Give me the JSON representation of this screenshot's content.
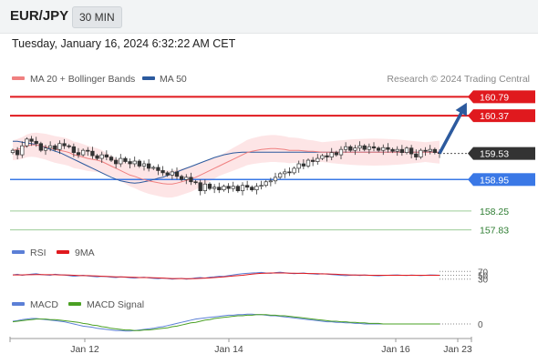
{
  "header": {
    "pair": "EUR/JPY",
    "timeframe": "30 MIN",
    "timestamp": "Tuesday, January 16, 2024 6:32:22 AM CET"
  },
  "legend": {
    "ma20": "MA 20 + Bollinger Bands",
    "ma50": "MA 50",
    "credit": "Research © 2024 Trading Central"
  },
  "colors": {
    "resistance": "#e0191e",
    "support": "#3a78e6",
    "target": "#5cab52",
    "ma20": "#f08080",
    "ma50": "#2c5a9e",
    "band": "#fde2e3",
    "candle": "#333333",
    "arrow": "#2c5a9e",
    "rsi": "#5b7fd6",
    "rsi_ma": "#e0191e",
    "macd": "#5b7fd6",
    "macd_signal": "#4aa023",
    "last_price": "#333333"
  },
  "chart_data": [
    {
      "type": "candlestick",
      "title": "EUR/JPY",
      "ylim": [
        157.6,
        161.0
      ],
      "last_price": 159.53,
      "levels": [
        {
          "value": 160.79,
          "label": "160.79",
          "kind": "resistance"
        },
        {
          "value": 160.37,
          "label": "160.37",
          "kind": "resistance"
        },
        {
          "value": 159.53,
          "label": "159.53",
          "kind": "last"
        },
        {
          "value": 158.95,
          "label": "158.95",
          "kind": "support"
        },
        {
          "value": 158.25,
          "label": "158.25",
          "kind": "target"
        },
        {
          "value": 157.83,
          "label": "157.83",
          "kind": "target"
        }
      ],
      "x_ticks": [
        "Jan 12",
        "Jan 14",
        "Jan 16",
        "Jan 23"
      ],
      "close": [
        159.6,
        159.5,
        159.7,
        159.85,
        159.8,
        159.75,
        159.6,
        159.65,
        159.7,
        159.62,
        159.75,
        159.7,
        159.68,
        159.55,
        159.5,
        159.6,
        159.58,
        159.48,
        159.42,
        159.5,
        159.45,
        159.38,
        159.3,
        159.42,
        159.35,
        159.3,
        159.36,
        159.25,
        159.3,
        159.2,
        159.22,
        159.15,
        159.1,
        159.05,
        159.12,
        159.02,
        158.95,
        159.0,
        158.9,
        158.88,
        158.7,
        158.85,
        158.75,
        158.78,
        158.72,
        158.8,
        158.75,
        158.8,
        158.7,
        158.82,
        158.78,
        158.72,
        158.8,
        158.82,
        158.9,
        158.92,
        159.0,
        159.08,
        159.12,
        159.1,
        159.2,
        159.3,
        159.25,
        159.38,
        159.35,
        159.42,
        159.48,
        159.45,
        159.55,
        159.5,
        159.62,
        159.68,
        159.6,
        159.65,
        159.7,
        159.62,
        159.68,
        159.65,
        159.6,
        159.66,
        159.62,
        159.58,
        159.62,
        159.55,
        159.65,
        159.52,
        159.45,
        159.6,
        159.58,
        159.62,
        159.55,
        159.53
      ],
      "ma20": [
        159.6,
        159.62,
        159.65,
        159.7,
        159.72,
        159.72,
        159.7,
        159.68,
        159.65,
        159.62,
        159.6,
        159.58,
        159.55,
        159.5,
        159.48,
        159.45,
        159.42,
        159.4,
        159.38,
        159.35,
        159.3,
        159.25,
        159.2,
        159.15,
        159.1,
        159.05,
        159.02,
        158.98,
        158.95,
        158.92,
        158.9,
        158.88,
        158.86,
        158.85,
        158.85,
        158.87,
        158.9,
        158.93,
        158.96,
        159.0,
        159.05,
        159.1,
        159.15,
        159.2,
        159.25,
        159.3,
        159.35,
        159.4,
        159.45,
        159.5,
        159.55,
        159.58,
        159.6,
        159.62,
        159.63,
        159.64,
        159.64,
        159.63,
        159.62,
        159.6,
        159.6,
        159.6,
        159.59,
        159.58,
        159.58,
        159.57,
        159.56,
        159.56,
        159.56,
        159.56,
        159.56,
        159.56,
        159.56,
        159.56,
        159.56,
        159.56,
        159.56,
        159.56,
        159.56,
        159.56,
        159.56,
        159.56,
        159.56,
        159.56,
        159.56,
        159.56,
        159.56,
        159.56,
        159.56,
        159.56,
        159.56,
        159.56
      ],
      "ma50": [
        159.8,
        159.8,
        159.78,
        159.76,
        159.75,
        159.72,
        159.7,
        159.66,
        159.62,
        159.58,
        159.55,
        159.5,
        159.45,
        159.4,
        159.35,
        159.3,
        159.25,
        159.2,
        159.15,
        159.1,
        159.05,
        159.0,
        158.96,
        158.92,
        158.9,
        158.88,
        158.87,
        158.88,
        158.9,
        158.92,
        158.95,
        158.98,
        159.0,
        159.04,
        159.08,
        159.12,
        159.16,
        159.2,
        159.24,
        159.28,
        159.32,
        159.36,
        159.4,
        159.44,
        159.47,
        159.5,
        159.52,
        159.54,
        159.55,
        159.56,
        159.56,
        159.56,
        159.56,
        159.56,
        159.56,
        159.56,
        159.56,
        159.56,
        159.56,
        159.56,
        159.56,
        159.56,
        159.56,
        159.56,
        159.56,
        159.56,
        159.56,
        159.56,
        159.56,
        159.56,
        159.56,
        159.56,
        159.56,
        159.56,
        159.56,
        159.56,
        159.56,
        159.56,
        159.56,
        159.56,
        159.56,
        159.56,
        159.56,
        159.56,
        159.56,
        159.56,
        159.56,
        159.56,
        159.56,
        159.56,
        159.56,
        159.56
      ]
    },
    {
      "type": "line",
      "title": "RSI",
      "ylim": [
        0,
        100
      ],
      "ticks": [
        70,
        50,
        30
      ],
      "series": [
        {
          "name": "RSI",
          "values": [
            52,
            55,
            50,
            53,
            56,
            58,
            54,
            52,
            50,
            55,
            53,
            51,
            48,
            45,
            47,
            50,
            46,
            44,
            42,
            45,
            43,
            40,
            38,
            42,
            40,
            37,
            35,
            38,
            40,
            36,
            34,
            32,
            35,
            33,
            30,
            32,
            34,
            30,
            32,
            36,
            38,
            35,
            40,
            42,
            45,
            44,
            48,
            52,
            55,
            58,
            60,
            62,
            63,
            65,
            62,
            60,
            64,
            66,
            63,
            61,
            58,
            60,
            62,
            59,
            57,
            55,
            58,
            56,
            54,
            52,
            50,
            48,
            50,
            52,
            49,
            51,
            50,
            48,
            47,
            49,
            50,
            51,
            52,
            50,
            49,
            51,
            50,
            48,
            50,
            52,
            51,
            50
          ]
        },
        {
          "name": "9MA",
          "values": [
            52,
            52,
            52,
            53,
            53,
            54,
            54,
            53,
            53,
            53,
            52,
            52,
            51,
            50,
            49,
            48,
            48,
            47,
            46,
            45,
            44,
            43,
            42,
            42,
            41,
            40,
            39,
            38,
            38,
            38,
            37,
            36,
            35,
            34,
            33,
            33,
            33,
            32,
            32,
            33,
            34,
            35,
            36,
            38,
            40,
            42,
            44,
            46,
            48,
            50,
            53,
            56,
            58,
            60,
            61,
            62,
            62,
            62,
            62,
            61,
            61,
            60,
            60,
            59,
            59,
            58,
            57,
            57,
            56,
            55,
            54,
            53,
            52,
            51,
            51,
            51,
            50,
            50,
            50,
            50,
            50,
            50,
            50,
            50,
            50,
            50,
            50,
            50,
            50,
            50,
            50,
            50
          ]
        }
      ]
    },
    {
      "type": "line",
      "title": "MACD",
      "ticks": [
        0
      ],
      "series": [
        {
          "name": "MACD",
          "values": [
            0.05,
            0.06,
            0.08,
            0.09,
            0.1,
            0.1,
            0.09,
            0.08,
            0.07,
            0.06,
            0.05,
            0.04,
            0.02,
            0.0,
            -0.02,
            -0.04,
            -0.05,
            -0.06,
            -0.08,
            -0.09,
            -0.1,
            -0.11,
            -0.12,
            -0.12,
            -0.13,
            -0.13,
            -0.12,
            -0.11,
            -0.1,
            -0.09,
            -0.08,
            -0.06,
            -0.05,
            -0.03,
            -0.01,
            0.01,
            0.03,
            0.05,
            0.07,
            0.09,
            0.1,
            0.11,
            0.12,
            0.13,
            0.14,
            0.15,
            0.16,
            0.16,
            0.17,
            0.17,
            0.18,
            0.18,
            0.17,
            0.17,
            0.16,
            0.15,
            0.15,
            0.14,
            0.13,
            0.12,
            0.11,
            0.1,
            0.09,
            0.08,
            0.07,
            0.06,
            0.05,
            0.04,
            0.04,
            0.03,
            0.03,
            0.02,
            0.02,
            0.01,
            0.01,
            0.0,
            0.0,
            0.0,
            0.0,
            0.0,
            0.0,
            0.0,
            0.0,
            0.0,
            0.0,
            0.0,
            0.0,
            0.0,
            0.0,
            0.0,
            0.0,
            0.0
          ]
        },
        {
          "name": "MACD Signal",
          "values": [
            0.04,
            0.05,
            0.06,
            0.07,
            0.08,
            0.09,
            0.09,
            0.09,
            0.08,
            0.08,
            0.07,
            0.06,
            0.05,
            0.04,
            0.03,
            0.01,
            0.0,
            -0.02,
            -0.03,
            -0.05,
            -0.06,
            -0.08,
            -0.09,
            -0.1,
            -0.11,
            -0.11,
            -0.12,
            -0.12,
            -0.11,
            -0.11,
            -0.1,
            -0.09,
            -0.08,
            -0.07,
            -0.05,
            -0.04,
            -0.02,
            0.0,
            0.02,
            0.03,
            0.05,
            0.07,
            0.08,
            0.1,
            0.11,
            0.12,
            0.13,
            0.14,
            0.15,
            0.15,
            0.16,
            0.16,
            0.17,
            0.17,
            0.17,
            0.16,
            0.16,
            0.15,
            0.15,
            0.14,
            0.13,
            0.12,
            0.11,
            0.1,
            0.09,
            0.08,
            0.07,
            0.06,
            0.05,
            0.05,
            0.04,
            0.04,
            0.03,
            0.03,
            0.02,
            0.02,
            0.01,
            0.01,
            0.01,
            0.0,
            0.0,
            0.0,
            0.0,
            0.0,
            0.0,
            0.0,
            0.0,
            0.0,
            0.0,
            0.0,
            0.0,
            0.0
          ]
        }
      ]
    }
  ]
}
